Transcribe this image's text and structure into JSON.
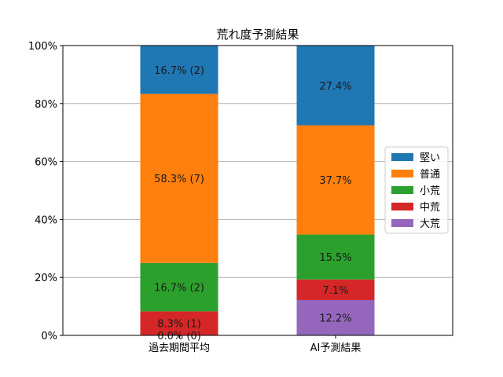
{
  "chart_data": {
    "type": "bar",
    "stacked": true,
    "title": "荒れ度予測結果",
    "xlabel": "",
    "ylabel": "",
    "ylim": [
      0,
      100
    ],
    "yticks": [
      "0%",
      "20%",
      "40%",
      "60%",
      "80%",
      "100%"
    ],
    "grid": "y",
    "categories": [
      "過去期間平均",
      "AI予測結果"
    ],
    "series": [
      {
        "name": "大荒",
        "color": "#9467bd",
        "values": [
          0.0,
          12.2
        ],
        "labels": [
          "0.0% (0)",
          "12.2%"
        ]
      },
      {
        "name": "中荒",
        "color": "#d62728",
        "values": [
          8.3,
          7.1
        ],
        "labels": [
          "8.3% (1)",
          "7.1%"
        ]
      },
      {
        "name": "小荒",
        "color": "#2ca02c",
        "values": [
          16.7,
          15.5
        ],
        "labels": [
          "16.7% (2)",
          "15.5%"
        ]
      },
      {
        "name": "普通",
        "color": "#ff7f0e",
        "values": [
          58.3,
          37.7
        ],
        "labels": [
          "58.3% (7)",
          "37.7%"
        ]
      },
      {
        "name": "堅い",
        "color": "#1f77b4",
        "values": [
          16.7,
          27.4
        ],
        "labels": [
          "16.7% (2)",
          "27.4%"
        ]
      }
    ],
    "legend": {
      "placement": "center-right",
      "order": [
        "堅い",
        "普通",
        "小荒",
        "中荒",
        "大荒"
      ]
    }
  }
}
